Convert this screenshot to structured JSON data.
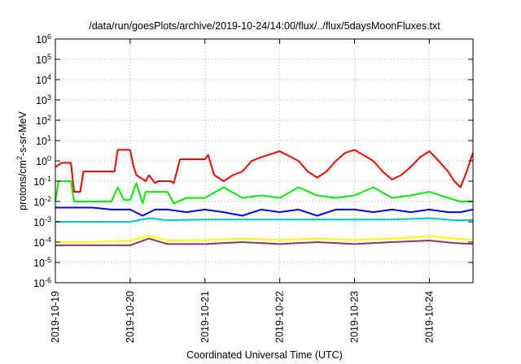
{
  "chart_data": {
    "type": "line",
    "title": "/data/run/goesPlots/archive/2019-10-24/14:00/flux/../flux/5daysMoonFluxes.txt",
    "xlabel": "Coordinated Universal Time (UTC)",
    "ylabel": {
      "base": "protons/cm",
      "sup": "2",
      "rest": "-s-sr-MeV"
    },
    "yscale": "log",
    "ylim": [
      1e-06,
      1000000.0
    ],
    "yticks": [
      {
        "value": 1e-06,
        "base": "10",
        "exp": "-6"
      },
      {
        "value": 1e-05,
        "base": "10",
        "exp": "-5"
      },
      {
        "value": 0.0001,
        "base": "10",
        "exp": "-4"
      },
      {
        "value": 0.001,
        "base": "10",
        "exp": "-3"
      },
      {
        "value": 0.01,
        "base": "10",
        "exp": "-2"
      },
      {
        "value": 0.1,
        "base": "10",
        "exp": "-1"
      },
      {
        "value": 1,
        "base": "10",
        "exp": "0"
      },
      {
        "value": 10,
        "base": "10",
        "exp": "1"
      },
      {
        "value": 100,
        "base": "10",
        "exp": "2"
      },
      {
        "value": 1000,
        "base": "10",
        "exp": "3"
      },
      {
        "value": 10000,
        "base": "10",
        "exp": "4"
      },
      {
        "value": 100000,
        "base": "10",
        "exp": "5"
      },
      {
        "value": 1000000,
        "base": "10",
        "exp": "6"
      }
    ],
    "xlim": [
      "2019-10-19",
      "2019-10-24T14:00"
    ],
    "xticks": [
      "2019-10-19",
      "2019-10-20",
      "2019-10-21",
      "2019-10-22",
      "2019-10-23",
      "2019-10-24"
    ],
    "grid": true,
    "series": [
      {
        "color": "#ff0000",
        "x": [
          "2019-10-19T00:00",
          "2019-10-19T02:00",
          "2019-10-19T03:00",
          "2019-10-19T05:00",
          "2019-10-19T06:00",
          "2019-10-19T08:00",
          "2019-10-19T09:00",
          "2019-10-19T12:00",
          "2019-10-19T13:00",
          "2019-10-19T19:00",
          "2019-10-19T20:00",
          "2019-10-20T00:00",
          "2019-10-20T01:00",
          "2019-10-20T02:00",
          "2019-10-20T05:00",
          "2019-10-20T06:00",
          "2019-10-20T08:00",
          "2019-10-20T09:00",
          "2019-10-20T13:00",
          "2019-10-20T14:00",
          "2019-10-20T16:00",
          "2019-10-21T00:00",
          "2019-10-21T01:00",
          "2019-10-21T03:00",
          "2019-10-21T06:00",
          "2019-10-21T09:00",
          "2019-10-21T12:00",
          "2019-10-21T15:00",
          "2019-10-21T18:00",
          "2019-10-22T00:00",
          "2019-10-22T06:00",
          "2019-10-22T09:00",
          "2019-10-22T12:00",
          "2019-10-22T15:00",
          "2019-10-22T18:00",
          "2019-10-22T21:00",
          "2019-10-23T00:00",
          "2019-10-23T06:00",
          "2019-10-23T09:00",
          "2019-10-23T12:00",
          "2019-10-23T15:00",
          "2019-10-23T18:00",
          "2019-10-23T21:00",
          "2019-10-24T00:00",
          "2019-10-24T03:00",
          "2019-10-24T06:00",
          "2019-10-24T08:00",
          "2019-10-24T10:00",
          "2019-10-24T12:00",
          "2019-10-24T14:00"
        ],
        "values": [
          0.5,
          0.8,
          0.8,
          0.8,
          0.03,
          0.03,
          0.3,
          0.3,
          0.3,
          0.3,
          3.5,
          3.5,
          0.6,
          0.2,
          0.1,
          0.2,
          0.08,
          0.1,
          0.1,
          0.08,
          1.2,
          1.2,
          2.0,
          0.2,
          0.1,
          0.2,
          0.3,
          1.0,
          1.5,
          3.0,
          1.0,
          0.3,
          0.15,
          0.3,
          1.0,
          2.5,
          3.5,
          1.0,
          0.3,
          0.12,
          0.2,
          0.5,
          1.5,
          3.0,
          1.0,
          0.3,
          0.1,
          0.05,
          0.3,
          2.5
        ]
      },
      {
        "color": "#00ee00",
        "x": [
          "2019-10-19T00:00",
          "2019-10-19T01:00",
          "2019-10-19T03:00",
          "2019-10-19T05:00",
          "2019-10-19T06:00",
          "2019-10-19T12:00",
          "2019-10-19T18:00",
          "2019-10-19T20:00",
          "2019-10-19T22:00",
          "2019-10-20T00:00",
          "2019-10-20T02:00",
          "2019-10-20T04:00",
          "2019-10-20T05:00",
          "2019-10-20T07:00",
          "2019-10-20T12:00",
          "2019-10-20T14:00",
          "2019-10-20T18:00",
          "2019-10-21T00:00",
          "2019-10-21T06:00",
          "2019-10-21T12:00",
          "2019-10-21T18:00",
          "2019-10-22T00:00",
          "2019-10-22T06:00",
          "2019-10-22T12:00",
          "2019-10-22T18:00",
          "2019-10-23T00:00",
          "2019-10-23T06:00",
          "2019-10-23T12:00",
          "2019-10-23T18:00",
          "2019-10-24T00:00",
          "2019-10-24T06:00",
          "2019-10-24T10:00",
          "2019-10-24T14:00"
        ],
        "values": [
          0.01,
          0.1,
          0.1,
          0.1,
          0.01,
          0.01,
          0.01,
          0.05,
          0.012,
          0.012,
          0.08,
          0.008,
          0.03,
          0.03,
          0.03,
          0.008,
          0.015,
          0.015,
          0.05,
          0.015,
          0.02,
          0.015,
          0.05,
          0.02,
          0.015,
          0.02,
          0.05,
          0.015,
          0.02,
          0.03,
          0.015,
          0.01,
          0.01
        ]
      },
      {
        "color": "#0000ff",
        "x": [
          "2019-10-19T00:00",
          "2019-10-19T06:00",
          "2019-10-19T12:00",
          "2019-10-19T18:00",
          "2019-10-20T00:00",
          "2019-10-20T04:00",
          "2019-10-20T08:00",
          "2019-10-20T12:00",
          "2019-10-20T18:00",
          "2019-10-21T00:00",
          "2019-10-21T06:00",
          "2019-10-21T12:00",
          "2019-10-21T18:00",
          "2019-10-22T00:00",
          "2019-10-22T06:00",
          "2019-10-22T12:00",
          "2019-10-22T18:00",
          "2019-10-23T00:00",
          "2019-10-23T06:00",
          "2019-10-23T12:00",
          "2019-10-23T18:00",
          "2019-10-24T00:00",
          "2019-10-24T06:00",
          "2019-10-24T10:00",
          "2019-10-24T14:00"
        ],
        "values": [
          0.005,
          0.005,
          0.005,
          0.004,
          0.004,
          0.002,
          0.004,
          0.004,
          0.003,
          0.004,
          0.003,
          0.002,
          0.004,
          0.003,
          0.004,
          0.002,
          0.004,
          0.004,
          0.003,
          0.004,
          0.003,
          0.004,
          0.003,
          0.003,
          0.004
        ]
      },
      {
        "color": "#00c8c8",
        "x": [
          "2019-10-19T00:00",
          "2019-10-19T12:00",
          "2019-10-20T00:00",
          "2019-10-20T06:00",
          "2019-10-20T12:00",
          "2019-10-21T00:00",
          "2019-10-21T12:00",
          "2019-10-22T00:00",
          "2019-10-22T12:00",
          "2019-10-23T00:00",
          "2019-10-23T12:00",
          "2019-10-24T00:00",
          "2019-10-24T08:00",
          "2019-10-24T14:00"
        ],
        "values": [
          0.001,
          0.001,
          0.001,
          0.0015,
          0.0012,
          0.0013,
          0.0013,
          0.0013,
          0.0013,
          0.0013,
          0.0013,
          0.0015,
          0.0012,
          0.0012
        ]
      },
      {
        "color": "#ffff00",
        "x": [
          "2019-10-19T00:00",
          "2019-10-19T12:00",
          "2019-10-20T00:00",
          "2019-10-20T06:00",
          "2019-10-20T12:00",
          "2019-10-21T00:00",
          "2019-10-21T12:00",
          "2019-10-22T00:00",
          "2019-10-22T12:00",
          "2019-10-23T00:00",
          "2019-10-23T12:00",
          "2019-10-24T00:00",
          "2019-10-24T08:00",
          "2019-10-24T14:00"
        ],
        "values": [
          0.0001,
          0.0001,
          0.00012,
          0.0002,
          0.00012,
          0.00013,
          0.00015,
          0.00013,
          0.00015,
          0.00013,
          0.00015,
          0.0002,
          0.00015,
          0.00013
        ]
      },
      {
        "color": "#8b3a62",
        "x": [
          "2019-10-19T00:00",
          "2019-10-19T12:00",
          "2019-10-20T00:00",
          "2019-10-20T06:00",
          "2019-10-20T12:00",
          "2019-10-21T00:00",
          "2019-10-21T12:00",
          "2019-10-22T00:00",
          "2019-10-22T12:00",
          "2019-10-23T00:00",
          "2019-10-23T12:00",
          "2019-10-24T00:00",
          "2019-10-24T08:00",
          "2019-10-24T14:00"
        ],
        "values": [
          7e-05,
          7e-05,
          7e-05,
          0.00015,
          8e-05,
          8e-05,
          0.0001,
          8e-05,
          0.0001,
          8e-05,
          0.0001,
          0.00012,
          9e-05,
          8e-05
        ]
      }
    ]
  }
}
